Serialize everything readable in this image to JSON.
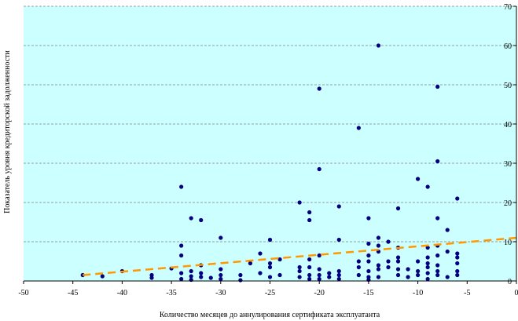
{
  "chart_data": {
    "type": "scatter",
    "xlabel": "Количество месяцев до аннулирования сертификата эксплуатанта",
    "ylabel": "Показатель уровня кредиторской задолженности",
    "xlim": [
      -50,
      0
    ],
    "ylim": [
      0,
      70
    ],
    "x_ticks": [
      -50,
      -45,
      -40,
      -35,
      -30,
      -25,
      -20,
      -15,
      -10,
      -5,
      0
    ],
    "y_ticks": [
      0,
      10,
      20,
      30,
      40,
      50,
      60,
      70
    ],
    "grid": "horizontal dashed",
    "plot_background": "#ccffff",
    "colors": {
      "points": "#000080",
      "trend": "#ff9900",
      "grid": "#808080"
    },
    "points": [
      [
        -44,
        1.5
      ],
      [
        -42,
        1.2
      ],
      [
        -40,
        2.5
      ],
      [
        -37,
        1.5
      ],
      [
        -37,
        0.8
      ],
      [
        -35,
        3.2
      ],
      [
        -34,
        24
      ],
      [
        -34,
        9
      ],
      [
        -34,
        6.5
      ],
      [
        -34,
        2
      ],
      [
        -34,
        0.5
      ],
      [
        -33,
        16
      ],
      [
        -33,
        2.5
      ],
      [
        -33,
        1.2
      ],
      [
        -33,
        0.3
      ],
      [
        -32,
        15.5
      ],
      [
        -32,
        4
      ],
      [
        -32,
        2
      ],
      [
        -32,
        1
      ],
      [
        -31,
        0.8
      ],
      [
        -30,
        11
      ],
      [
        -30,
        3
      ],
      [
        -30,
        1.5
      ],
      [
        -30,
        0.5
      ],
      [
        -28,
        1.5
      ],
      [
        -28,
        0.2
      ],
      [
        -27,
        4.5
      ],
      [
        -26,
        7
      ],
      [
        -26,
        2
      ],
      [
        -25,
        10.5
      ],
      [
        -25,
        4.5
      ],
      [
        -25,
        3.5
      ],
      [
        -25,
        1
      ],
      [
        -24,
        5.5
      ],
      [
        -24,
        1.5
      ],
      [
        -22,
        20
      ],
      [
        -22,
        3.5
      ],
      [
        -22,
        2.5
      ],
      [
        -22,
        1
      ],
      [
        -21,
        17.5
      ],
      [
        -21,
        15.5
      ],
      [
        -21,
        5.5
      ],
      [
        -21,
        3.5
      ],
      [
        -21,
        1.5
      ],
      [
        -21,
        0.5
      ],
      [
        -20,
        49
      ],
      [
        -20,
        28.5
      ],
      [
        -20,
        6.5
      ],
      [
        -20,
        3
      ],
      [
        -20,
        1.5
      ],
      [
        -20,
        0.5
      ],
      [
        -19,
        2
      ],
      [
        -19,
        1
      ],
      [
        -18,
        19
      ],
      [
        -18,
        10.5
      ],
      [
        -18,
        2.5
      ],
      [
        -18,
        1.5
      ],
      [
        -18,
        0.5
      ],
      [
        -16,
        39
      ],
      [
        -16,
        5
      ],
      [
        -16,
        3.5
      ],
      [
        -16,
        1.5
      ],
      [
        -15,
        16
      ],
      [
        -15,
        9.5
      ],
      [
        -15,
        6.5
      ],
      [
        -15,
        5
      ],
      [
        -15,
        2.5
      ],
      [
        -15,
        1
      ],
      [
        -15,
        0.3
      ],
      [
        -14,
        60
      ],
      [
        -14,
        11
      ],
      [
        -14,
        9
      ],
      [
        -14,
        7.5
      ],
      [
        -14,
        4
      ],
      [
        -14,
        3
      ],
      [
        -14,
        1
      ],
      [
        -13,
        10
      ],
      [
        -13,
        5
      ],
      [
        -13,
        3.5
      ],
      [
        -12,
        18.5
      ],
      [
        -12,
        8.5
      ],
      [
        -12,
        6
      ],
      [
        -12,
        5
      ],
      [
        -12,
        3
      ],
      [
        -12,
        1.5
      ],
      [
        -11,
        3
      ],
      [
        -11,
        1
      ],
      [
        -10,
        26
      ],
      [
        -10,
        5
      ],
      [
        -10,
        2.5
      ],
      [
        -10,
        1.5
      ],
      [
        -9,
        24
      ],
      [
        -9,
        8.5
      ],
      [
        -9,
        6
      ],
      [
        -9,
        4.5
      ],
      [
        -9,
        3.5
      ],
      [
        -9,
        2
      ],
      [
        -9,
        0.5
      ],
      [
        -8,
        49.5
      ],
      [
        -8,
        30.5
      ],
      [
        -8,
        16
      ],
      [
        -8,
        9
      ],
      [
        -8,
        6.5
      ],
      [
        -8,
        4
      ],
      [
        -8,
        2.5
      ],
      [
        -8,
        1.5
      ],
      [
        -7,
        13
      ],
      [
        -7,
        7.5
      ],
      [
        -7,
        1
      ],
      [
        -6,
        21
      ],
      [
        -6,
        7
      ],
      [
        -6,
        6
      ],
      [
        -6,
        4.5
      ],
      [
        -6,
        2.5
      ],
      [
        -6,
        1.5
      ]
    ],
    "trendline": {
      "type": "linear",
      "from": [
        -44,
        1.5
      ],
      "to": [
        0,
        11
      ]
    }
  }
}
